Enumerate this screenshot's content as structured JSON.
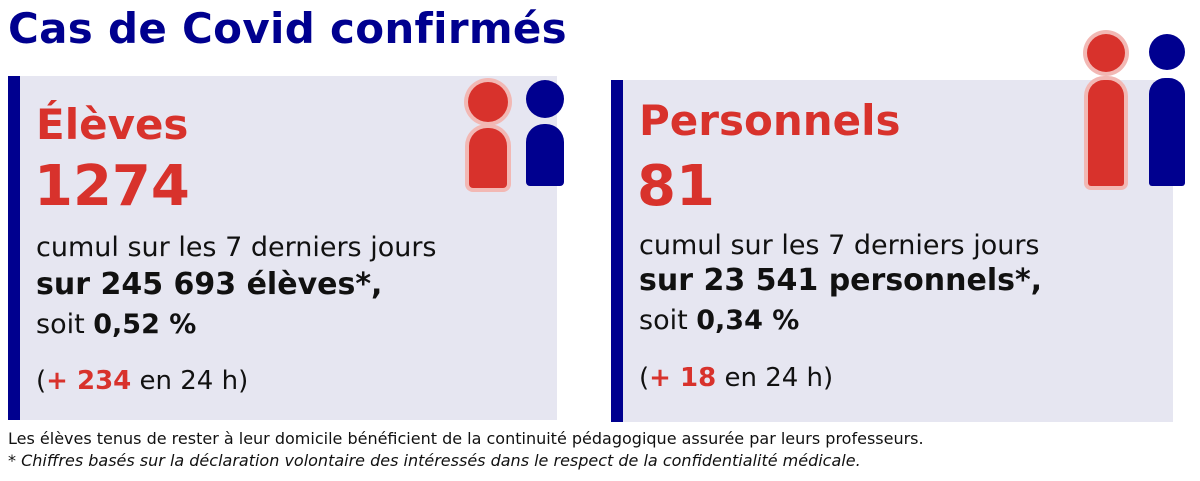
{
  "title": "Cas de Covid confirmés",
  "cards": [
    {
      "category": "Élèves",
      "count": "1274",
      "period": "cumul sur les 7 derniers jours",
      "total": "sur 245 693 élèves*,",
      "share_prefix": "soit ",
      "share_value": "0,52 %",
      "delta_open": "(",
      "delta_value": "+ 234",
      "delta_close": " en 24 h)"
    },
    {
      "category": "Personnels",
      "count": "81",
      "period": "cumul sur les 7 derniers jours",
      "total": "sur 23 541 personnels*,",
      "share_prefix": "soit ",
      "share_value": "0,34 %",
      "delta_open": "(",
      "delta_value": "+ 18",
      "delta_close": " en 24 h)"
    }
  ],
  "footer": {
    "note": "Les élèves tenus de rester à leur domicile bénéficient de la continuité pédagogique assurée par leurs professeurs.",
    "footnote": "* Chiffres basés sur la déclaration volontaire des intéressés dans le respect de la confidentialité médicale."
  },
  "icons": {
    "left": [
      "person-red-icon",
      "person-blue-icon"
    ],
    "right": [
      "person-red-icon",
      "person-blue-icon"
    ]
  },
  "colors": {
    "title_blue": "#00008f",
    "accent_red": "#d8322c",
    "card_bg": "#e6e6f1"
  }
}
